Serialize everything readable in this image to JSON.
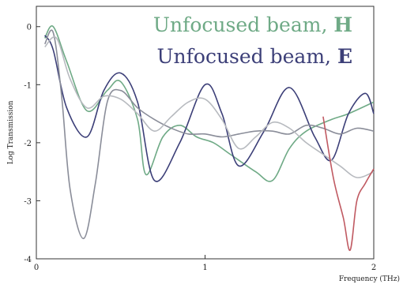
{
  "chart_data": {
    "type": "line",
    "xlabel": "Frequency (THz)",
    "ylabel": "Log Transmission",
    "xlim": [
      0,
      2
    ],
    "ylim": [
      -4,
      0.35
    ],
    "xticks": [
      0,
      1,
      2
    ],
    "yticks": [
      0,
      -1,
      -2,
      -3,
      -4
    ],
    "grid": false,
    "legend": {
      "placement": "top-right"
    },
    "legend_entries": [
      {
        "text": "Unfocused beam, ",
        "letter": "H",
        "color": "#6faa86"
      },
      {
        "text": "Unfocused beam, ",
        "letter": "E",
        "color": "#3c3f78"
      }
    ],
    "series": [
      {
        "color": "#6faa86",
        "x": [
          0.05,
          0.1,
          0.18,
          0.3,
          0.42,
          0.5,
          0.6,
          0.65,
          0.75,
          0.85,
          0.95,
          1.05,
          1.15,
          1.3,
          1.4,
          1.5,
          1.6,
          1.75,
          1.85,
          2.0
        ],
        "y": [
          -0.2,
          0.0,
          -0.6,
          -1.45,
          -1.1,
          -0.95,
          -1.6,
          -2.55,
          -1.9,
          -1.7,
          -1.9,
          -2.0,
          -2.2,
          -2.5,
          -2.65,
          -2.1,
          -1.8,
          -1.6,
          -1.5,
          -1.3
        ]
      },
      {
        "color": "#3c3f78",
        "x": [
          0.05,
          0.1,
          0.18,
          0.3,
          0.4,
          0.5,
          0.6,
          0.7,
          0.85,
          1.0,
          1.1,
          1.2,
          1.35,
          1.5,
          1.65,
          1.75,
          1.85,
          1.95,
          2.0
        ],
        "y": [
          -0.15,
          -0.4,
          -1.4,
          -1.9,
          -1.1,
          -0.8,
          -1.3,
          -2.65,
          -2.0,
          -1.0,
          -1.5,
          -2.4,
          -1.8,
          -1.05,
          -1.9,
          -2.3,
          -1.5,
          -1.15,
          -1.5
        ]
      },
      {
        "color": "#8a8d99",
        "x": [
          0.05,
          0.1,
          0.15,
          0.2,
          0.28,
          0.35,
          0.42,
          0.5,
          0.6,
          0.7,
          0.8,
          0.9,
          1.0,
          1.1,
          1.2,
          1.3,
          1.4,
          1.5,
          1.6,
          1.7,
          1.8,
          1.9,
          2.0
        ],
        "y": [
          -0.3,
          -0.1,
          -1.2,
          -2.8,
          -3.65,
          -2.7,
          -1.3,
          -1.1,
          -1.4,
          -1.6,
          -1.75,
          -1.85,
          -1.85,
          -1.9,
          -1.85,
          -1.8,
          -1.8,
          -1.85,
          -1.7,
          -1.75,
          -1.85,
          -1.75,
          -1.8
        ]
      },
      {
        "color": "#b7babf",
        "x": [
          0.05,
          0.12,
          0.2,
          0.3,
          0.4,
          0.5,
          0.6,
          0.7,
          0.8,
          0.9,
          1.0,
          1.1,
          1.2,
          1.3,
          1.4,
          1.5,
          1.6,
          1.7,
          1.8,
          1.9,
          2.0
        ],
        "y": [
          -0.35,
          -0.2,
          -0.9,
          -1.4,
          -1.2,
          -1.25,
          -1.5,
          -1.8,
          -1.55,
          -1.3,
          -1.25,
          -1.6,
          -2.1,
          -1.9,
          -1.65,
          -1.75,
          -2.0,
          -2.2,
          -2.4,
          -2.6,
          -2.5
        ]
      },
      {
        "color": "#c05a62",
        "x": [
          1.7,
          1.76,
          1.82,
          1.86,
          1.9,
          1.95,
          2.0
        ],
        "y": [
          -1.55,
          -2.6,
          -3.3,
          -3.85,
          -3.0,
          -2.7,
          -2.45
        ]
      }
    ]
  }
}
